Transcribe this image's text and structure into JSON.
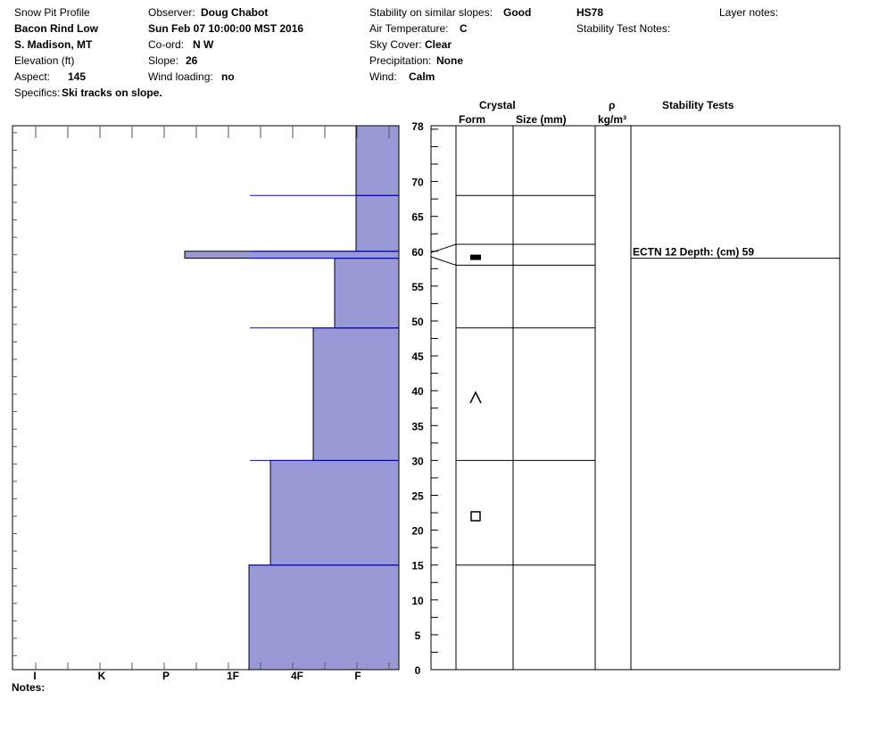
{
  "header": {
    "title": "Snow Pit Profile",
    "location_name": "Bacon Rind Low",
    "region": "S. Madison, MT",
    "elevation_label": "Elevation (ft)",
    "aspect_label": "Aspect:",
    "aspect_value": "145",
    "specifics_label": "Specifics:",
    "specifics_value": "Ski tracks on slope.",
    "observer_label": "Observer:",
    "observer_value": "Doug Chabot",
    "datetime": "Sun Feb 07 10:00:00 MST 2016",
    "coord_label": "Co-ord:",
    "coord_value": "N  W",
    "slope_label": "Slope:",
    "slope_value": "26",
    "wind_loading_label": "Wind loading:",
    "wind_loading_value": "no",
    "stability_label": "Stability on similar slopes:",
    "stability_value": "Good",
    "air_temp_label": "Air Temperature:",
    "air_temp_value": "C",
    "sky_label": "Sky Cover:",
    "sky_value": "Clear",
    "precip_label": "Precipitation:",
    "precip_value": "None",
    "wind_label": "Wind:",
    "wind_value": "Calm",
    "hs": "HS78",
    "stability_notes_label": "Stability Test Notes:",
    "layer_notes_label": "Layer notes:"
  },
  "columns": {
    "crystal": "Crystal",
    "form": "Form",
    "size": "Size (mm)",
    "rho": "ρ",
    "density_unit": "kg/m³",
    "stability_tests": "Stability Tests"
  },
  "notes_label": "Notes:",
  "colors": {
    "hardness_fill": "#9999d6",
    "layer_line": "#0000ff",
    "outline": "#000000"
  },
  "chart_data": {
    "type": "bar",
    "orientation": "horizontal",
    "x_tick_labels": [
      "I",
      "K",
      "P",
      "1F",
      "4F",
      "F"
    ],
    "y_ticks": [
      0,
      5,
      10,
      15,
      20,
      25,
      30,
      35,
      40,
      45,
      50,
      55,
      60,
      65,
      70,
      78
    ],
    "ylim": [
      0,
      78
    ],
    "hardness_layers": [
      {
        "bottom": 0,
        "top": 15,
        "hardness": "1F-"
      },
      {
        "bottom": 15,
        "top": 30,
        "hardness": "1F"
      },
      {
        "bottom": 30,
        "top": 49,
        "hardness": "4F"
      },
      {
        "bottom": 49,
        "top": 59,
        "hardness": "4F-"
      },
      {
        "bottom": 59,
        "top": 60,
        "hardness": "P-"
      },
      {
        "bottom": 60,
        "top": 68,
        "hardness": "F"
      },
      {
        "bottom": 68,
        "top": 78,
        "hardness": "F"
      }
    ],
    "layer_boundaries": [
      15,
      30,
      49,
      58,
      61,
      68
    ],
    "crystal_forms": [
      {
        "depth": 59,
        "form": "surface-hoar"
      },
      {
        "depth": 39,
        "form": "faceted-rounded"
      },
      {
        "depth": 22,
        "form": "faceted"
      }
    ],
    "stability_tests": [
      {
        "depth": 59,
        "result": "ECTN 12",
        "depth_label": "Depth: (cm) 59"
      }
    ]
  }
}
